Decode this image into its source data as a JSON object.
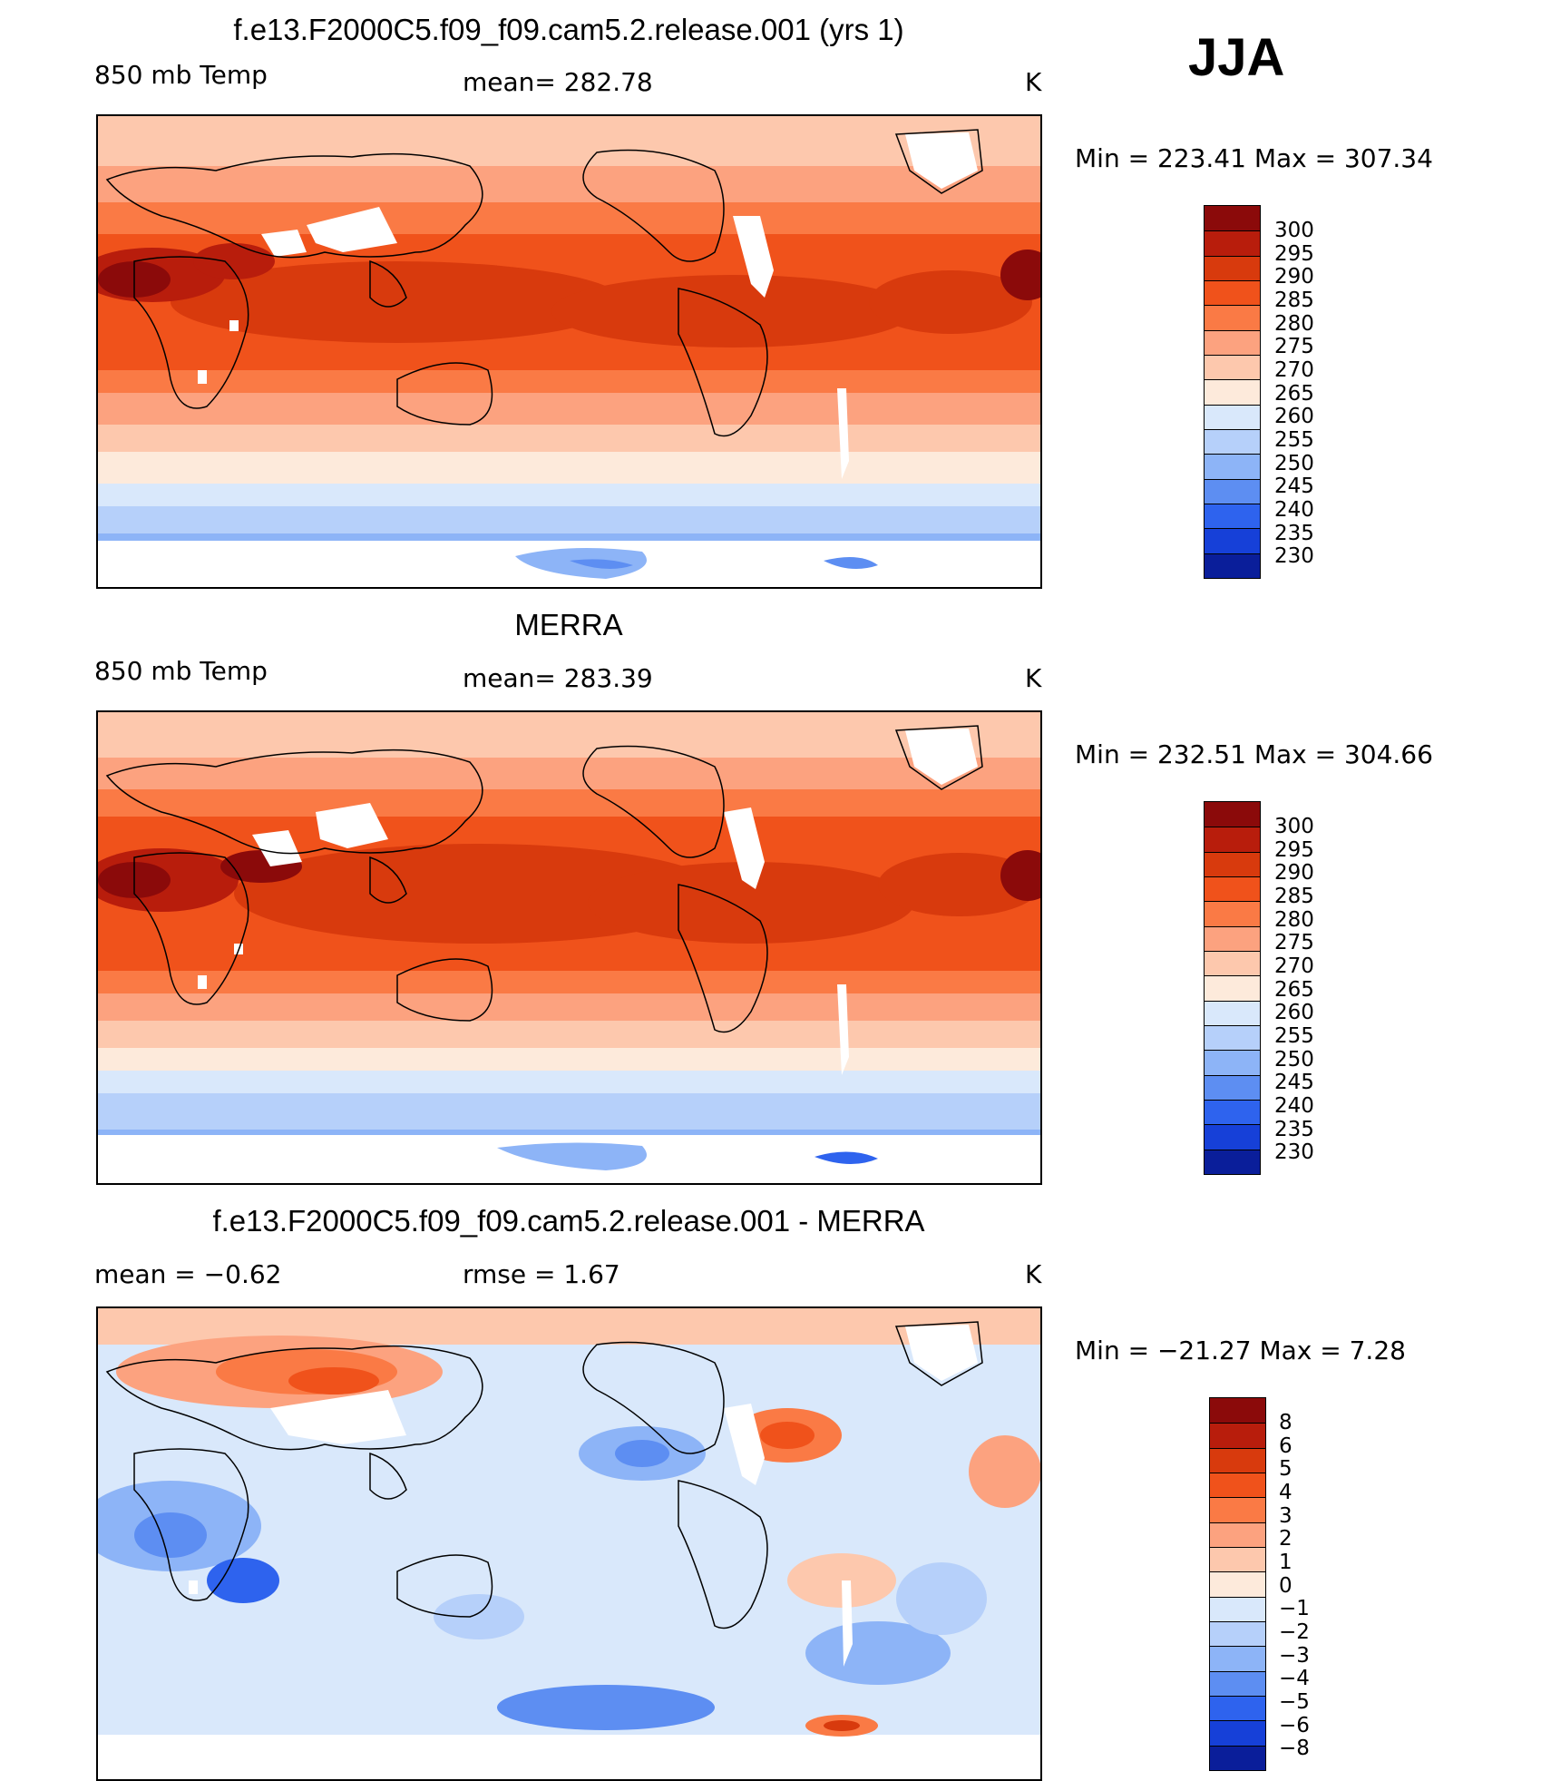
{
  "season": "JJA",
  "chart_data": [
    {
      "type": "heatmap",
      "title": "f.e13.F2000C5.f09_f09.cam5.2.release.001 (yrs 1)",
      "left_label": "850 mb Temp",
      "center_label": "mean= 282.78",
      "units": "K",
      "min_max": "Min = 223.41 Max = 307.34",
      "levels": [
        "300",
        "295",
        "290",
        "285",
        "280",
        "275",
        "270",
        "265",
        "260",
        "255",
        "250",
        "245",
        "240",
        "235",
        "230"
      ],
      "colors": [
        "#8b0a0a",
        "#b81d0c",
        "#d83a0d",
        "#f0521b",
        "#fa7a45",
        "#fca27f",
        "#fdc8ad",
        "#fdeadb",
        "#d9e8fb",
        "#b6d0fa",
        "#8db4f7",
        "#5d8ef2",
        "#2e63ee",
        "#1640d8",
        "#0a1e9a"
      ]
    },
    {
      "type": "heatmap",
      "title": "MERRA",
      "left_label": "850 mb Temp",
      "center_label": "mean= 283.39",
      "units": "K",
      "min_max": "Min = 232.51 Max = 304.66",
      "levels": [
        "300",
        "295",
        "290",
        "285",
        "280",
        "275",
        "270",
        "265",
        "260",
        "255",
        "250",
        "245",
        "240",
        "235",
        "230"
      ],
      "colors": [
        "#8b0a0a",
        "#b81d0c",
        "#d83a0d",
        "#f0521b",
        "#fa7a45",
        "#fca27f",
        "#fdc8ad",
        "#fdeadb",
        "#d9e8fb",
        "#b6d0fa",
        "#8db4f7",
        "#5d8ef2",
        "#2e63ee",
        "#1640d8",
        "#0a1e9a"
      ]
    },
    {
      "type": "heatmap",
      "title": "f.e13.F2000C5.f09_f09.cam5.2.release.001 - MERRA",
      "left_label": "mean = −0.62",
      "center_label": "rmse = 1.67",
      "units": "K",
      "min_max": "Min = −21.27 Max = 7.28",
      "levels": [
        "8",
        "6",
        "5",
        "4",
        "3",
        "2",
        "1",
        "0",
        "−1",
        "−2",
        "−3",
        "−4",
        "−5",
        "−6",
        "−8"
      ],
      "colors": [
        "#8b0a0a",
        "#b81d0c",
        "#d83a0d",
        "#f0521b",
        "#fa7a45",
        "#fca27f",
        "#fdc8ad",
        "#fdeadb",
        "#d9e8fb",
        "#b6d0fa",
        "#8db4f7",
        "#5d8ef2",
        "#2e63ee",
        "#1640d8",
        "#0a1e9a"
      ]
    }
  ]
}
